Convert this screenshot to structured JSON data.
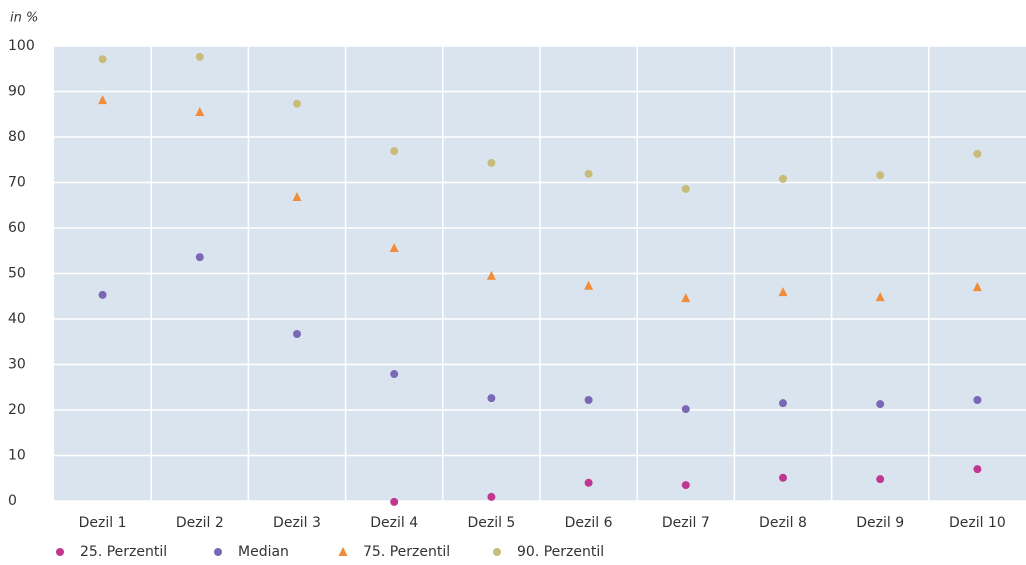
{
  "chart_data": {
    "type": "scatter",
    "y_label": "in %",
    "categories": [
      "Dezil 1",
      "Dezil 2",
      "Dezil 3",
      "Dezil 4",
      "Dezil 5",
      "Dezil 6",
      "Dezil 7",
      "Dezil 8",
      "Dezil 9",
      "Dezil 10"
    ],
    "ylim": [
      0,
      100
    ],
    "yticks": [
      0,
      10,
      20,
      30,
      40,
      50,
      60,
      70,
      80,
      90,
      100
    ],
    "grid": true,
    "legend": "bottom",
    "series": [
      {
        "name": "25. Perzentil",
        "color": "#c0378f",
        "marker": "circle",
        "values": [
          null,
          null,
          null,
          -0.2,
          0.9,
          4.0,
          3.5,
          5.1,
          4.8,
          7.0
        ]
      },
      {
        "name": "Median",
        "color": "#7a68b5",
        "marker": "circle",
        "values": [
          45.3,
          53.6,
          36.7,
          27.9,
          22.6,
          22.2,
          20.2,
          21.5,
          21.3,
          22.2
        ]
      },
      {
        "name": "75. Perzentil",
        "color": "#f08c3a",
        "marker": "triangle",
        "values": [
          88.1,
          85.5,
          66.8,
          55.6,
          49.5,
          47.3,
          44.6,
          45.9,
          44.8,
          47.0
        ]
      },
      {
        "name": "90. Perzentil",
        "color": "#c9bc7a",
        "marker": "circle",
        "values": [
          97.1,
          97.6,
          87.3,
          76.9,
          74.3,
          71.9,
          68.6,
          70.8,
          71.6,
          76.3
        ]
      }
    ]
  }
}
